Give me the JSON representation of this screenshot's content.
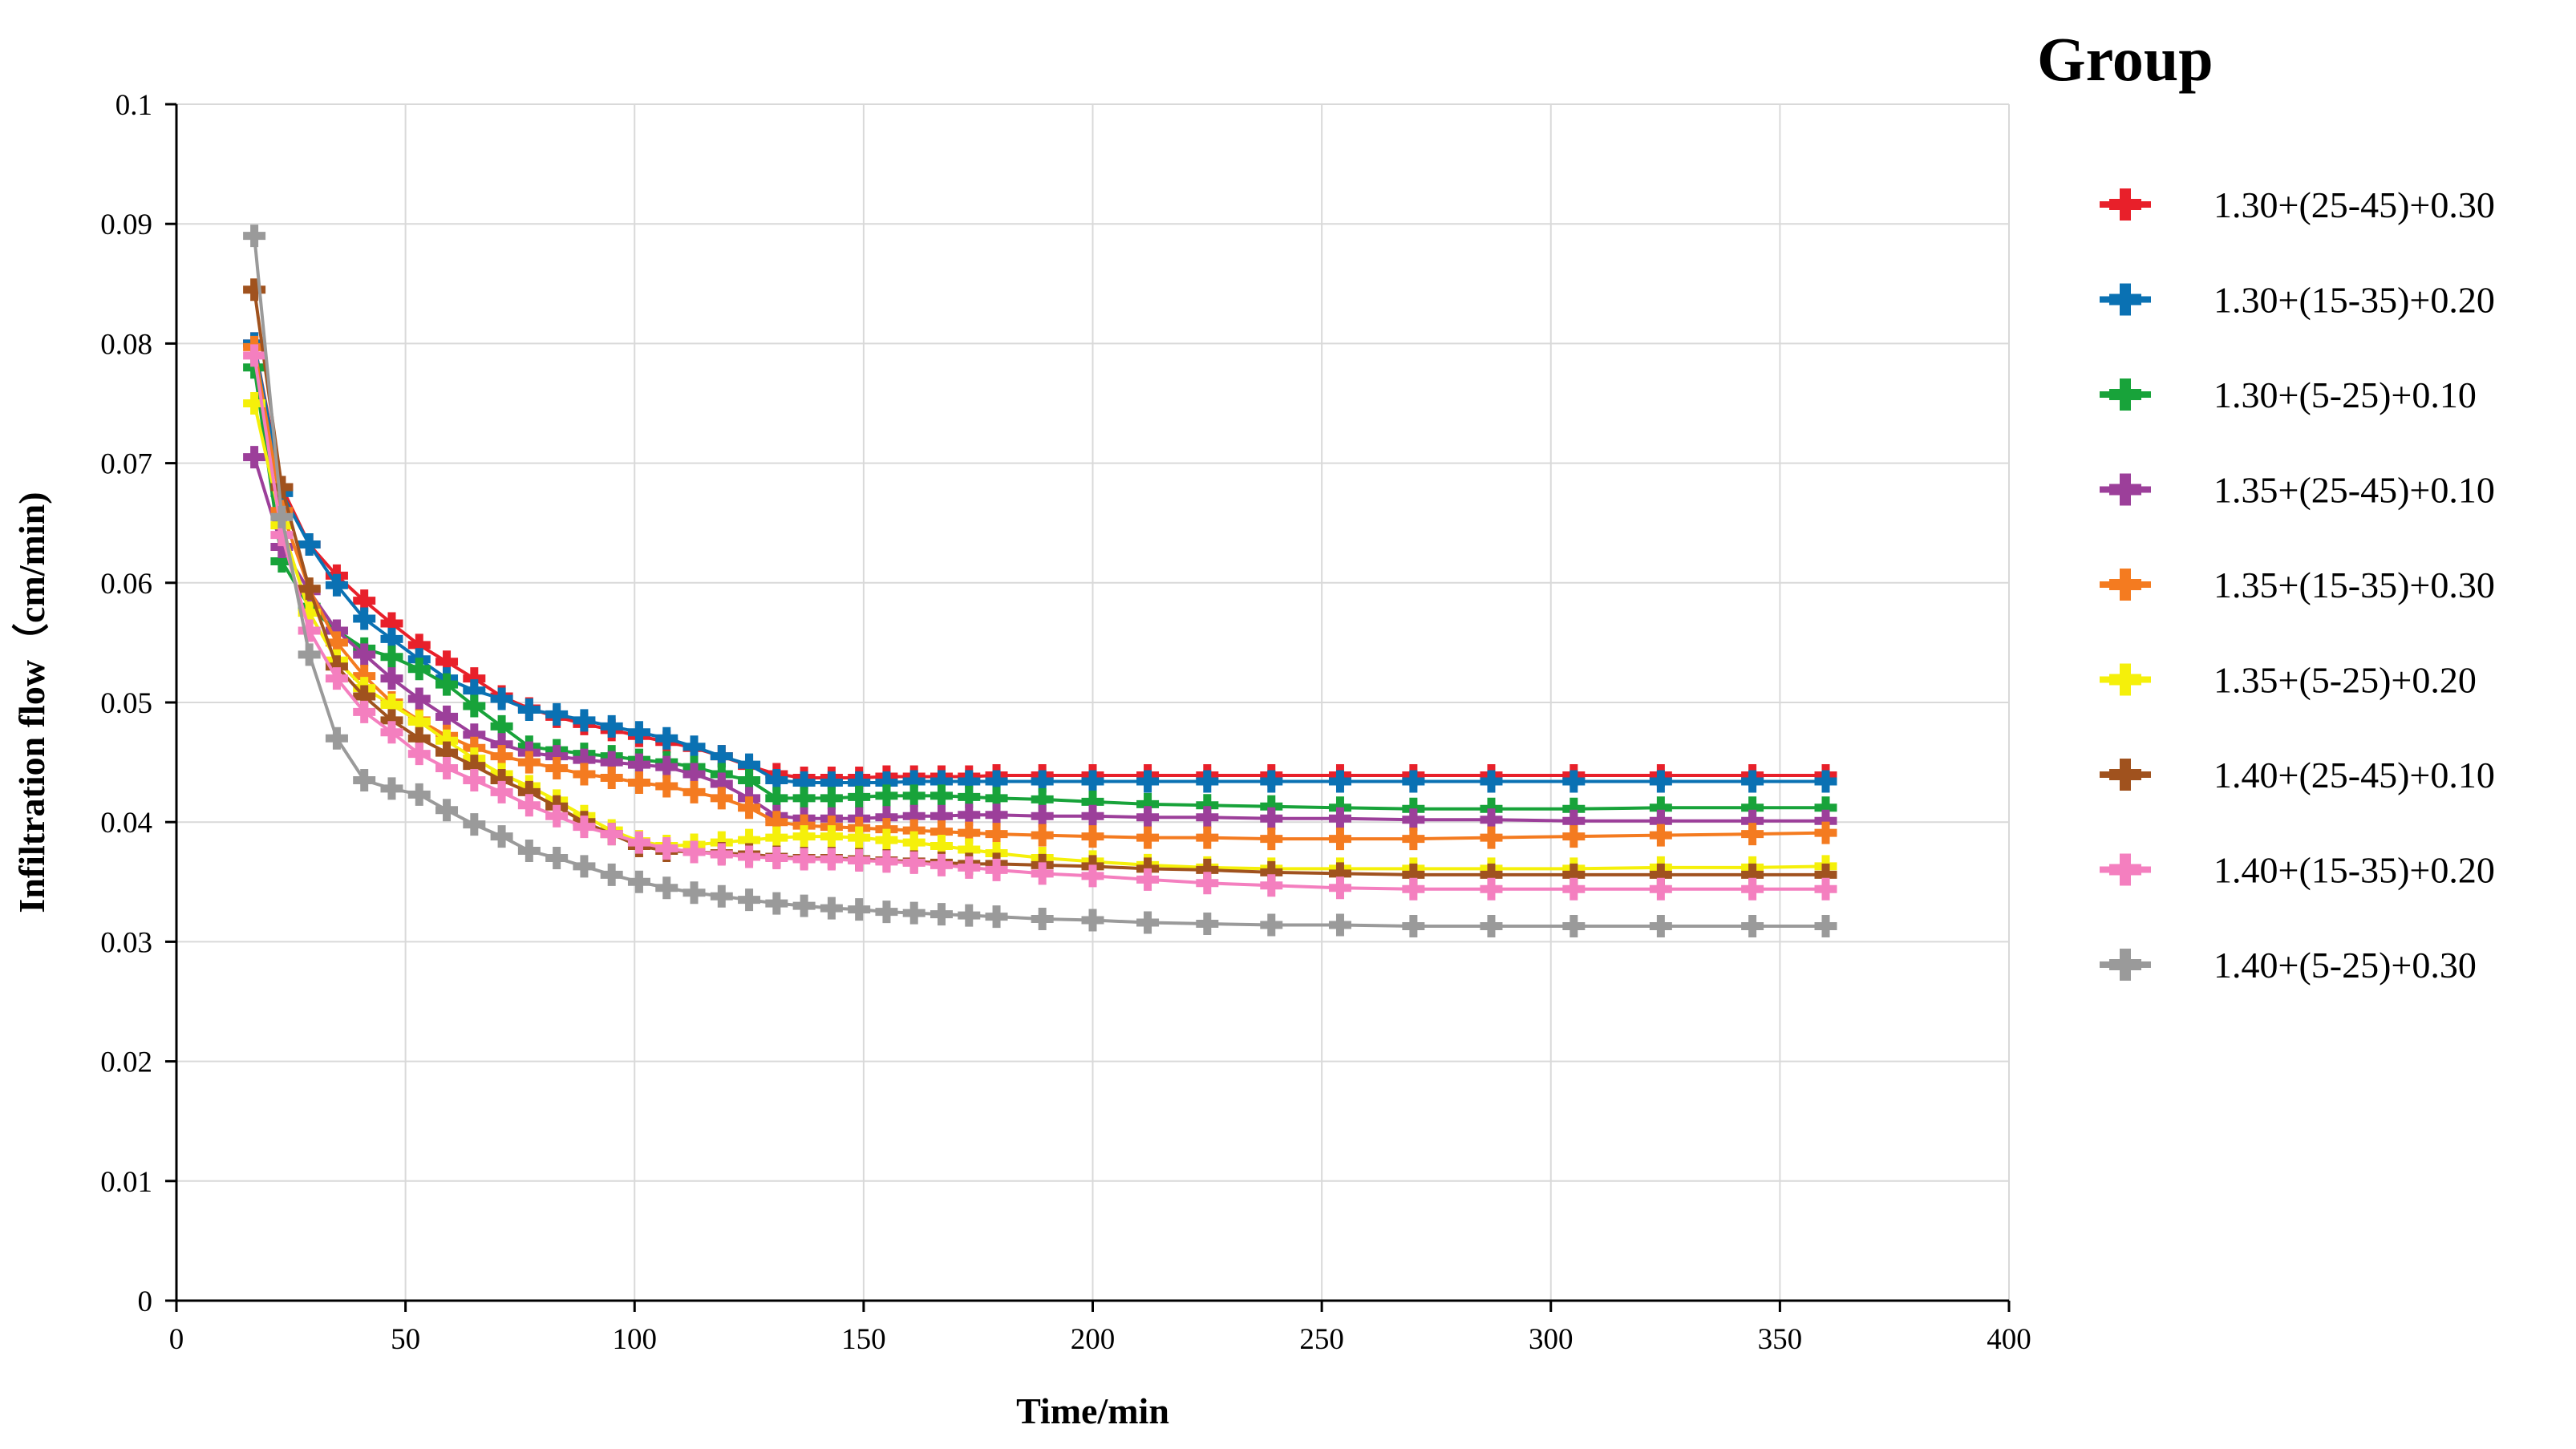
{
  "chart_data": {
    "type": "line",
    "title": "",
    "xlabel": "Time/min",
    "ylabel": "Infiltration flow（cm/min)",
    "xlim": [
      0,
      400
    ],
    "ylim": [
      0,
      0.1
    ],
    "grid": true,
    "x_ticks": [
      "0",
      "50",
      "100",
      "150",
      "200",
      "250",
      "300",
      "350",
      "400"
    ],
    "y_ticks": [
      "0",
      "0.01",
      "0.02",
      "0.03",
      "0.04",
      "0.05",
      "0.06",
      "0.07",
      "0.08",
      "0.09",
      "0.1"
    ],
    "legend_title": "Group",
    "legend_position": "right",
    "x": [
      17,
      23,
      29,
      35,
      41,
      47,
      53,
      59,
      65,
      71,
      77,
      83,
      89,
      95,
      101,
      107,
      113,
      119,
      125,
      131,
      137,
      143,
      149,
      155,
      161,
      167,
      173,
      179,
      189,
      200,
      212,
      225,
      239,
      254,
      270,
      287,
      305,
      324,
      344,
      360
    ],
    "series": [
      {
        "name": "1.30+(25-45)+0.30",
        "color": "#e8202a",
        "values": [
          0.08,
          0.068,
          0.0632,
          0.0606,
          0.0585,
          0.0566,
          0.0548,
          0.0534,
          0.052,
          0.0505,
          0.0495,
          0.0488,
          0.0482,
          0.0477,
          0.0472,
          0.0467,
          0.0462,
          0.0455,
          0.0447,
          0.044,
          0.0437,
          0.0437,
          0.0437,
          0.0438,
          0.0438,
          0.0438,
          0.0438,
          0.0439,
          0.0439,
          0.0439,
          0.0439,
          0.0439,
          0.0439,
          0.0439,
          0.0439,
          0.0439,
          0.0439,
          0.0439,
          0.0439,
          0.0439
        ]
      },
      {
        "name": "1.30+(15-35)+0.20",
        "color": "#0a71b3",
        "values": [
          0.08,
          0.0675,
          0.0632,
          0.0598,
          0.057,
          0.0553,
          0.0536,
          0.052,
          0.051,
          0.0503,
          0.0494,
          0.049,
          0.0485,
          0.048,
          0.0475,
          0.047,
          0.0463,
          0.0455,
          0.0448,
          0.0435,
          0.0433,
          0.0433,
          0.0433,
          0.0433,
          0.0434,
          0.0434,
          0.0434,
          0.0434,
          0.0434,
          0.0434,
          0.0434,
          0.0434,
          0.0434,
          0.0434,
          0.0434,
          0.0434,
          0.0434,
          0.0434,
          0.0434,
          0.0434
        ]
      },
      {
        "name": "1.30+(5-25)+0.10",
        "color": "#18a33a",
        "values": [
          0.078,
          0.0618,
          0.058,
          0.056,
          0.0545,
          0.0538,
          0.0528,
          0.0515,
          0.0497,
          0.048,
          0.0463,
          0.046,
          0.0457,
          0.0455,
          0.0452,
          0.045,
          0.0446,
          0.044,
          0.0435,
          0.042,
          0.042,
          0.042,
          0.0421,
          0.0422,
          0.0422,
          0.0422,
          0.0421,
          0.042,
          0.0419,
          0.0417,
          0.0415,
          0.0414,
          0.0413,
          0.0412,
          0.0411,
          0.0411,
          0.0411,
          0.0412,
          0.0412,
          0.0412
        ]
      },
      {
        "name": "1.35+(25-45)+0.10",
        "color": "#9c3f9a",
        "values": [
          0.0705,
          0.063,
          0.0593,
          0.056,
          0.054,
          0.052,
          0.0503,
          0.0488,
          0.0473,
          0.0465,
          0.0458,
          0.0455,
          0.0452,
          0.045,
          0.0448,
          0.0446,
          0.044,
          0.0432,
          0.042,
          0.0405,
          0.0403,
          0.0403,
          0.0403,
          0.0404,
          0.0405,
          0.0405,
          0.0406,
          0.0406,
          0.0405,
          0.0405,
          0.0404,
          0.0404,
          0.0403,
          0.0403,
          0.0402,
          0.0402,
          0.0401,
          0.0401,
          0.0401,
          0.0401
        ]
      },
      {
        "name": "1.35+(15-35)+0.30",
        "color": "#f47b20",
        "values": [
          0.0797,
          0.066,
          0.0595,
          0.055,
          0.0522,
          0.05,
          0.0485,
          0.0472,
          0.0462,
          0.0455,
          0.045,
          0.0445,
          0.044,
          0.0437,
          0.0433,
          0.043,
          0.0425,
          0.042,
          0.0412,
          0.04,
          0.0397,
          0.0396,
          0.0395,
          0.0394,
          0.0393,
          0.0392,
          0.0391,
          0.039,
          0.0389,
          0.0388,
          0.0387,
          0.0387,
          0.0386,
          0.0386,
          0.0386,
          0.0387,
          0.0388,
          0.0389,
          0.039,
          0.0391
        ]
      },
      {
        "name": "1.35+(5-25)+0.20",
        "color": "#f5f00a",
        "values": [
          0.075,
          0.0648,
          0.0575,
          0.0535,
          0.0512,
          0.0498,
          0.0484,
          0.0468,
          0.0453,
          0.044,
          0.043,
          0.0418,
          0.0405,
          0.0393,
          0.0384,
          0.038,
          0.0381,
          0.0383,
          0.0385,
          0.0387,
          0.0388,
          0.0388,
          0.0387,
          0.0385,
          0.0383,
          0.038,
          0.0377,
          0.0374,
          0.037,
          0.0367,
          0.0364,
          0.0362,
          0.0361,
          0.0361,
          0.0361,
          0.0361,
          0.0361,
          0.0362,
          0.0362,
          0.0363
        ]
      },
      {
        "name": "1.40+(25-45)+0.10",
        "color": "#a0521e",
        "values": [
          0.0845,
          0.068,
          0.0595,
          0.053,
          0.0505,
          0.0485,
          0.047,
          0.0458,
          0.0447,
          0.0435,
          0.0425,
          0.0413,
          0.04,
          0.039,
          0.038,
          0.0376,
          0.0375,
          0.0374,
          0.0373,
          0.0371,
          0.037,
          0.037,
          0.0369,
          0.0368,
          0.0367,
          0.0366,
          0.0365,
          0.0365,
          0.0364,
          0.0363,
          0.0361,
          0.036,
          0.0358,
          0.0357,
          0.0356,
          0.0356,
          0.0356,
          0.0356,
          0.0356,
          0.0356
        ]
      },
      {
        "name": "1.40+(15-35)+0.20",
        "color": "#f47fbf",
        "values": [
          0.079,
          0.064,
          0.056,
          0.052,
          0.0492,
          0.0475,
          0.0457,
          0.0445,
          0.0435,
          0.0425,
          0.0414,
          0.0405,
          0.0396,
          0.039,
          0.0383,
          0.0378,
          0.0375,
          0.0373,
          0.0371,
          0.037,
          0.0369,
          0.0369,
          0.0368,
          0.0367,
          0.0366,
          0.0364,
          0.0362,
          0.036,
          0.0357,
          0.0355,
          0.0352,
          0.0349,
          0.0347,
          0.0345,
          0.0344,
          0.0344,
          0.0344,
          0.0344,
          0.0344,
          0.0344
        ]
      },
      {
        "name": "1.40+(5-25)+0.30",
        "color": "#9a9a9a",
        "values": [
          0.089,
          0.0655,
          0.054,
          0.047,
          0.0435,
          0.0428,
          0.0423,
          0.041,
          0.0398,
          0.0388,
          0.0376,
          0.037,
          0.0363,
          0.0356,
          0.035,
          0.0345,
          0.0341,
          0.0338,
          0.0335,
          0.0332,
          0.033,
          0.0328,
          0.0327,
          0.0325,
          0.0324,
          0.0323,
          0.0322,
          0.0321,
          0.0319,
          0.0318,
          0.0316,
          0.0315,
          0.0314,
          0.0314,
          0.0313,
          0.0313,
          0.0313,
          0.0313,
          0.0313,
          0.0313
        ]
      }
    ]
  }
}
